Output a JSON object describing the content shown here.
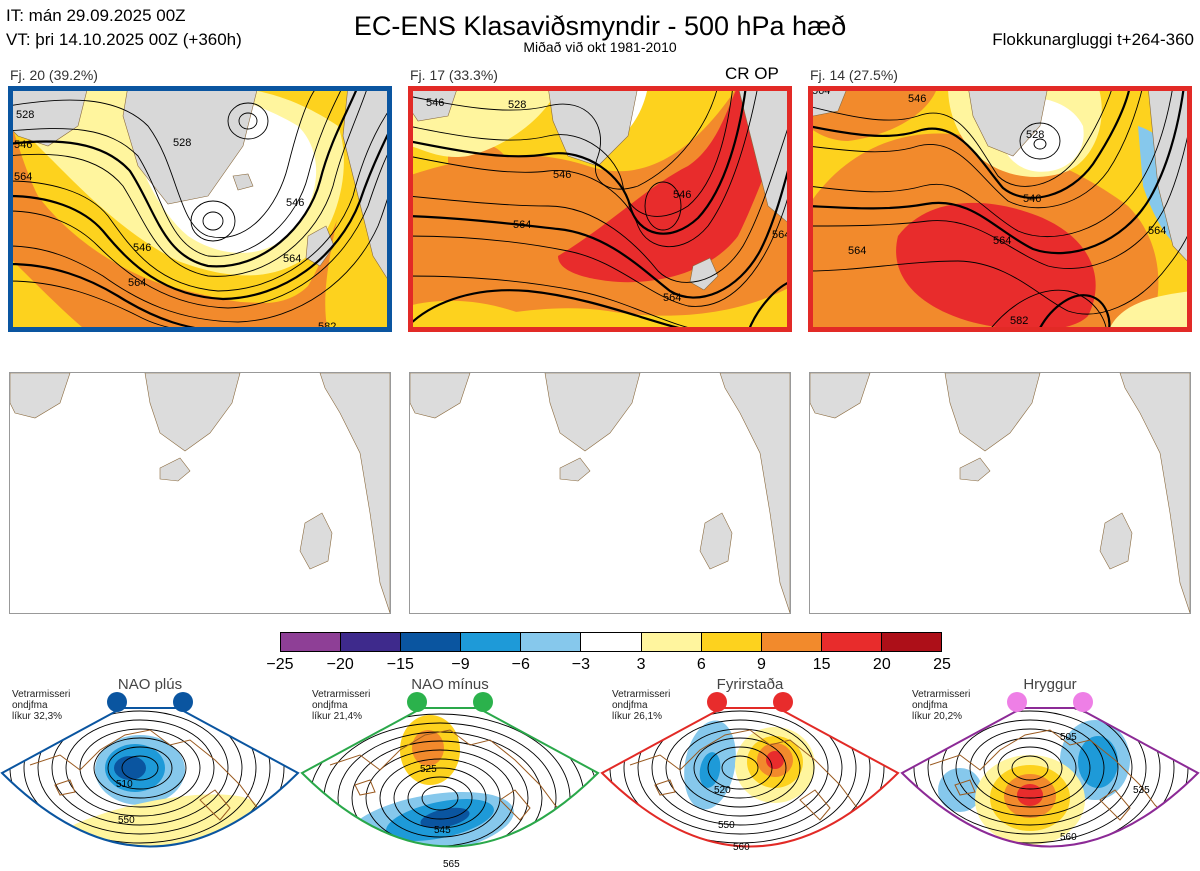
{
  "header": {
    "it_line": "IT: mán 29.09.2025 00Z",
    "vt_line": "VT: þri 14.10.2025 00Z  (+360h)",
    "title": "EC-ENS Klasaviðsmyndir - 500 hPa hæð",
    "subtitle": "Miðað við okt 1981-2010",
    "window": "Flokkunargluggi t+264-360"
  },
  "clusters": [
    {
      "label": "Fj. 20 (39.2%)",
      "frame_color": "#0a55a0",
      "tag": "",
      "contour_labels": [
        "528",
        "546",
        "564",
        "528",
        "546",
        "564",
        "546",
        "564",
        "582"
      ]
    },
    {
      "label": "Fj. 17 (33.3%)",
      "frame_color": "#e22a26",
      "tag": "CR OP",
      "contour_labels": [
        "546",
        "528",
        "546",
        "546",
        "564",
        "564",
        "564"
      ]
    },
    {
      "label": "Fj. 14 (27.5%)",
      "frame_color": "#e22a26",
      "tag": "",
      "contour_labels": [
        "564",
        "546",
        "528",
        "546",
        "564",
        "564",
        "564",
        "582"
      ]
    }
  ],
  "colorbar": {
    "labels": [
      "−25",
      "−20",
      "−15",
      "−9",
      "−6",
      "−3",
      "3",
      "6",
      "9",
      "15",
      "20",
      "25"
    ],
    "colors": [
      "#8e3f96",
      "#3e2a8c",
      "#0a55a0",
      "#1e9ad8",
      "#86c8ec",
      "#ffffff",
      "#fff59e",
      "#fdd21e",
      "#f28a2c",
      "#e82c2c",
      "#ad0f18"
    ]
  },
  "regimes": [
    {
      "title": "NAO plús",
      "note": [
        "Vetrarmisseri",
        "ondjfma",
        "líkur 32,3%"
      ],
      "color": "#0a55a0",
      "dot_color": "#0a55a0",
      "contour_labels": [
        "510",
        "550"
      ]
    },
    {
      "title": "NAO mínus",
      "note": [
        "Vetrarmisseri",
        "ondjfma",
        "líkur 21,4%"
      ],
      "color": "#2aa84a",
      "dot_color": "#2bb24c",
      "contour_labels": [
        "525",
        "545",
        "565"
      ]
    },
    {
      "title": "Fyrirstaða",
      "note": [
        "Vetrarmisseri",
        "ondjfma",
        "líkur 26,1%"
      ],
      "color": "#e22a26",
      "dot_color": "#e82c2c",
      "contour_labels": [
        "520",
        "550",
        "560"
      ]
    },
    {
      "title": "Hryggur",
      "note": [
        "Vetrarmisseri",
        "ondjfma",
        "líkur 20,2%"
      ],
      "color": "#8c2a96",
      "dot_color": "#ee7fe6",
      "contour_labels": [
        "505",
        "535",
        "560"
      ]
    }
  ]
}
